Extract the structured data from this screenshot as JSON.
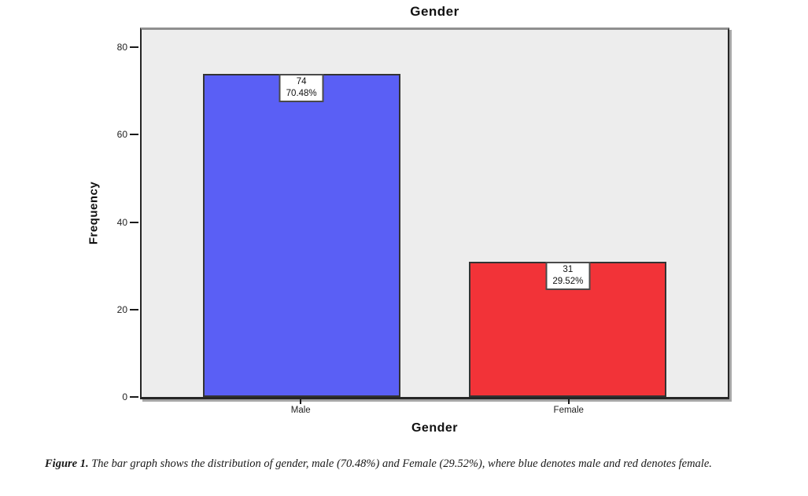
{
  "chart_data": {
    "type": "bar",
    "title": "Gender",
    "xlabel": "Gender",
    "ylabel": "Frequency",
    "categories": [
      "Male",
      "Female"
    ],
    "values": [
      74,
      31
    ],
    "count_labels": [
      "74",
      "31"
    ],
    "percent_labels": [
      "70.48%",
      "29.52%"
    ],
    "colors": [
      "#5a5ff5",
      "#f23338"
    ],
    "ylim": [
      0,
      84
    ],
    "yticks": [
      0,
      20,
      40,
      60,
      80
    ],
    "grid": false,
    "legend_position": "none",
    "plot_background": "#ededed"
  },
  "caption": {
    "label": "Figure 1.",
    "text": " The bar graph shows the distribution of gender, male (70.48%) and Female (29.52%), where blue denotes male and red denotes female."
  }
}
